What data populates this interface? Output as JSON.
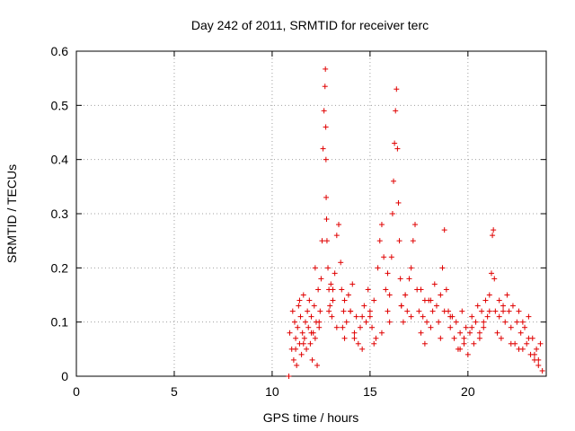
{
  "chart_data": {
    "type": "scatter",
    "title": "Day 242 of 2011, SRMTID for receiver terc",
    "xlabel": "GPS time / hours",
    "ylabel": "SRMTID / TECUs",
    "xlim": [
      0,
      24
    ],
    "ylim": [
      0,
      0.6
    ],
    "xticks": [
      0,
      5,
      10,
      15,
      20
    ],
    "xtick_labels": [
      "0",
      "5",
      "10",
      "15",
      "20"
    ],
    "yticks": [
      0,
      0.1,
      0.2,
      0.3,
      0.4,
      0.5,
      0.6
    ],
    "ytick_labels": [
      "0",
      "0.1",
      "0.2",
      "0.3",
      "0.4",
      "0.5",
      "0.6"
    ],
    "grid": true,
    "marker": "plus",
    "series": [
      {
        "name": "SRMTID",
        "color": "#e00000",
        "x": [
          10.85,
          10.9,
          11.0,
          11.05,
          11.1,
          11.15,
          11.2,
          11.25,
          11.3,
          11.35,
          11.4,
          11.45,
          11.5,
          11.55,
          11.6,
          11.65,
          11.7,
          11.75,
          11.8,
          11.85,
          11.9,
          11.95,
          12.0,
          12.05,
          12.1,
          12.15,
          12.2,
          12.25,
          12.3,
          12.35,
          12.4,
          12.45,
          12.5,
          12.55,
          12.6,
          12.65,
          12.7,
          12.72,
          12.74,
          12.75,
          12.76,
          12.78,
          12.8,
          12.85,
          12.9,
          12.95,
          13.0,
          13.05,
          13.1,
          13.2,
          13.3,
          13.4,
          13.5,
          13.55,
          13.6,
          13.65,
          13.7,
          13.8,
          13.9,
          14.0,
          14.1,
          14.2,
          14.3,
          14.4,
          14.5,
          14.6,
          14.7,
          14.8,
          14.9,
          15.0,
          15.1,
          15.2,
          15.3,
          15.4,
          15.5,
          15.6,
          15.7,
          15.8,
          15.9,
          16.0,
          16.1,
          16.15,
          16.2,
          16.25,
          16.3,
          16.35,
          16.4,
          16.45,
          16.5,
          16.55,
          16.6,
          16.7,
          16.8,
          16.9,
          17.0,
          17.1,
          17.2,
          17.3,
          17.4,
          17.5,
          17.6,
          17.7,
          17.8,
          17.9,
          18.0,
          18.1,
          18.2,
          18.3,
          18.4,
          18.5,
          18.6,
          18.7,
          18.8,
          18.9,
          19.0,
          19.1,
          19.2,
          19.3,
          19.4,
          19.5,
          19.6,
          19.7,
          19.8,
          19.9,
          20.0,
          20.1,
          20.2,
          20.3,
          20.4,
          20.5,
          20.6,
          20.7,
          20.8,
          20.9,
          21.0,
          21.1,
          21.2,
          21.25,
          21.3,
          21.35,
          21.4,
          21.5,
          21.6,
          21.7,
          21.8,
          21.9,
          22.0,
          22.1,
          22.2,
          22.3,
          22.4,
          22.5,
          22.6,
          22.7,
          22.8,
          22.9,
          23.0,
          23.1,
          23.2,
          23.3,
          23.4,
          23.5,
          23.6,
          23.7,
          23.8,
          11.2,
          11.6,
          12.0,
          12.4,
          12.9,
          13.3,
          13.7,
          14.2,
          14.6,
          15.2,
          15.6,
          16.0,
          16.6,
          17.1,
          17.6,
          18.1,
          18.6,
          19.1,
          19.6,
          20.2,
          20.6,
          21.1,
          21.6,
          22.2,
          22.6,
          23.1,
          23.6,
          11.4,
          12.2,
          13.1,
          14.0,
          15.0,
          15.9,
          16.8,
          17.8,
          18.8,
          19.8,
          20.8,
          21.8,
          22.8,
          23.4
        ],
        "y": [
          0.0,
          0.08,
          0.05,
          0.12,
          0.03,
          0.1,
          0.07,
          0.02,
          0.09,
          0.13,
          0.06,
          0.11,
          0.04,
          0.08,
          0.15,
          0.07,
          0.1,
          0.05,
          0.12,
          0.09,
          0.14,
          0.06,
          0.11,
          0.03,
          0.08,
          0.13,
          0.07,
          0.1,
          0.02,
          0.16,
          0.09,
          0.12,
          0.18,
          0.25,
          0.42,
          0.49,
          0.535,
          0.567,
          0.46,
          0.4,
          0.33,
          0.29,
          0.25,
          0.2,
          0.16,
          0.13,
          0.17,
          0.11,
          0.14,
          0.19,
          0.26,
          0.28,
          0.21,
          0.16,
          0.09,
          0.12,
          0.07,
          0.1,
          0.15,
          0.12,
          0.17,
          0.08,
          0.11,
          0.06,
          0.09,
          0.05,
          0.13,
          0.1,
          0.16,
          0.12,
          0.09,
          0.14,
          0.07,
          0.2,
          0.25,
          0.28,
          0.22,
          0.16,
          0.12,
          0.15,
          0.22,
          0.3,
          0.36,
          0.43,
          0.49,
          0.53,
          0.42,
          0.32,
          0.25,
          0.18,
          0.13,
          0.1,
          0.15,
          0.12,
          0.18,
          0.2,
          0.25,
          0.28,
          0.16,
          0.12,
          0.08,
          0.11,
          0.06,
          0.1,
          0.14,
          0.09,
          0.12,
          0.17,
          0.13,
          0.1,
          0.15,
          0.2,
          0.27,
          0.16,
          0.12,
          0.09,
          0.11,
          0.07,
          0.1,
          0.05,
          0.08,
          0.12,
          0.06,
          0.09,
          0.04,
          0.08,
          0.11,
          0.06,
          0.1,
          0.13,
          0.08,
          0.12,
          0.09,
          0.14,
          0.11,
          0.15,
          0.19,
          0.26,
          0.27,
          0.18,
          0.12,
          0.08,
          0.11,
          0.07,
          0.13,
          0.1,
          0.15,
          0.12,
          0.09,
          0.13,
          0.06,
          0.1,
          0.12,
          0.08,
          0.05,
          0.09,
          0.06,
          0.11,
          0.04,
          0.07,
          0.03,
          0.05,
          0.02,
          0.06,
          0.01,
          0.05,
          0.06,
          0.08,
          0.1,
          0.12,
          0.09,
          0.14,
          0.07,
          0.11,
          0.06,
          0.08,
          0.1,
          0.13,
          0.11,
          0.16,
          0.14,
          0.07,
          0.11,
          0.05,
          0.09,
          0.07,
          0.12,
          0.14,
          0.06,
          0.05,
          0.07,
          0.03,
          0.14,
          0.2,
          0.16,
          0.12,
          0.11,
          0.19,
          0.15,
          0.14,
          0.12,
          0.07,
          0.1,
          0.12,
          0.1,
          0.04
        ]
      }
    ]
  }
}
